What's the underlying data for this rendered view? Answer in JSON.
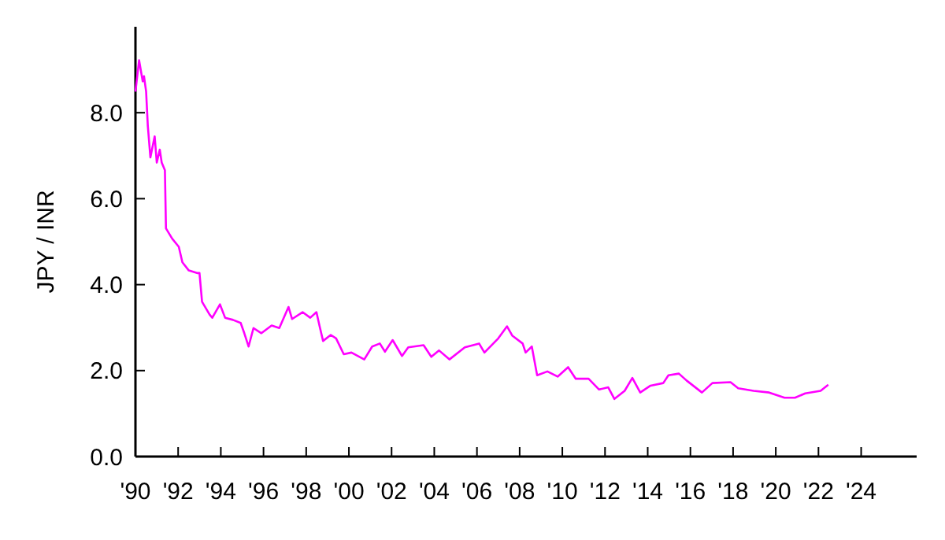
{
  "chart_data": {
    "type": "line",
    "ylabel": "JPY / INR",
    "xlim": [
      1990,
      2026.6
    ],
    "ylim": [
      0,
      10
    ],
    "xticks": [
      {
        "value": 1990,
        "label": "'90"
      },
      {
        "value": 1992,
        "label": "'92"
      },
      {
        "value": 1994,
        "label": "'94"
      },
      {
        "value": 1996,
        "label": "'96"
      },
      {
        "value": 1998,
        "label": "'98"
      },
      {
        "value": 2000,
        "label": "'00"
      },
      {
        "value": 2002,
        "label": "'02"
      },
      {
        "value": 2004,
        "label": "'04"
      },
      {
        "value": 2006,
        "label": "'06"
      },
      {
        "value": 2008,
        "label": "'08"
      },
      {
        "value": 2010,
        "label": "'10"
      },
      {
        "value": 2012,
        "label": "'12"
      },
      {
        "value": 2014,
        "label": "'14"
      },
      {
        "value": 2016,
        "label": "'16"
      },
      {
        "value": 2018,
        "label": "'18"
      },
      {
        "value": 2020,
        "label": "'20"
      },
      {
        "value": 2022,
        "label": "'22"
      },
      {
        "value": 2024,
        "label": "'24"
      }
    ],
    "yticks": [
      {
        "value": 0,
        "label": "0.0"
      },
      {
        "value": 2,
        "label": "2.0"
      },
      {
        "value": 4,
        "label": "4.0"
      },
      {
        "value": 6,
        "label": "6.0"
      },
      {
        "value": 8,
        "label": "8.0"
      }
    ],
    "marker": "none",
    "line_style": "solid",
    "series": [
      {
        "color": "#ff00ff",
        "x": [
          1990.0,
          1990.17,
          1990.34,
          1990.4,
          1990.5,
          1990.58,
          1990.7,
          1990.9,
          1991.0,
          1991.14,
          1991.23,
          1991.38,
          1991.43,
          1991.72,
          1992.03,
          1992.2,
          1992.5,
          1992.88,
          1993.0,
          1993.12,
          1993.48,
          1993.6,
          1993.96,
          1994.2,
          1994.57,
          1994.93,
          1995.1,
          1995.3,
          1995.53,
          1995.9,
          1996.38,
          1996.74,
          1997.17,
          1997.34,
          1997.83,
          1998.19,
          1998.48,
          1998.62,
          1998.79,
          1999.15,
          1999.4,
          1999.76,
          2000.12,
          2000.72,
          2001.09,
          2001.45,
          2001.69,
          2002.05,
          2002.49,
          2002.78,
          2003.5,
          2003.86,
          2004.22,
          2004.71,
          2005.43,
          2006.1,
          2006.35,
          2007.0,
          2007.41,
          2007.66,
          2008.14,
          2008.28,
          2008.57,
          2008.82,
          2009.3,
          2009.78,
          2010.27,
          2010.63,
          2011.23,
          2011.72,
          2012.15,
          2012.44,
          2012.92,
          2013.28,
          2013.65,
          2014.13,
          2014.73,
          2014.97,
          2015.46,
          2015.82,
          2016.54,
          2017.03,
          2017.88,
          2018.24,
          2018.96,
          2019.69,
          2020.41,
          2020.9,
          2021.38,
          2022.1,
          2022.46
        ],
        "values": [
          8.49,
          9.22,
          8.73,
          8.85,
          8.49,
          7.69,
          6.96,
          7.45,
          6.84,
          7.14,
          6.84,
          6.66,
          5.31,
          5.07,
          4.88,
          4.52,
          4.33,
          4.27,
          4.27,
          3.6,
          3.3,
          3.23,
          3.54,
          3.23,
          3.18,
          3.11,
          2.87,
          2.56,
          2.99,
          2.87,
          3.05,
          2.99,
          3.48,
          3.2,
          3.36,
          3.23,
          3.36,
          3.05,
          2.69,
          2.83,
          2.75,
          2.38,
          2.42,
          2.26,
          2.56,
          2.63,
          2.44,
          2.71,
          2.34,
          2.54,
          2.59,
          2.32,
          2.47,
          2.26,
          2.54,
          2.63,
          2.42,
          2.75,
          3.03,
          2.81,
          2.63,
          2.42,
          2.56,
          1.89,
          1.98,
          1.86,
          2.08,
          1.81,
          1.81,
          1.56,
          1.61,
          1.34,
          1.53,
          1.83,
          1.49,
          1.65,
          1.71,
          1.89,
          1.93,
          1.77,
          1.49,
          1.71,
          1.73,
          1.59,
          1.53,
          1.49,
          1.37,
          1.37,
          1.47,
          1.53,
          1.67
        ]
      }
    ]
  }
}
